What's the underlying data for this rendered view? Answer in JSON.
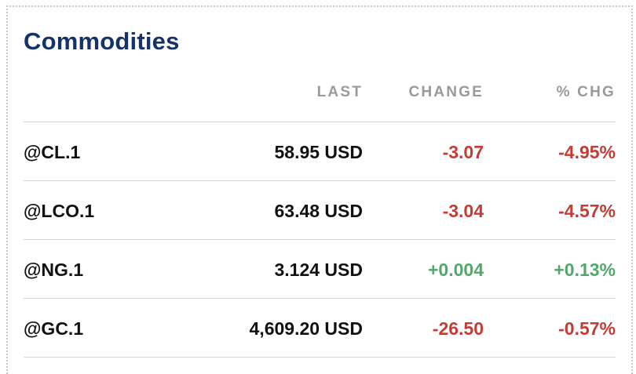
{
  "widget": {
    "title": "Commodities",
    "headers": {
      "last": "LAST",
      "change": "CHANGE",
      "pct_change": "% CHG"
    },
    "rows": [
      {
        "symbol": "@CL.1",
        "last": "58.95 USD",
        "change": "-3.07",
        "pct_change": "-4.95%",
        "direction": "down"
      },
      {
        "symbol": "@LCO.1",
        "last": "63.48 USD",
        "change": "-3.04",
        "pct_change": "-4.57%",
        "direction": "down"
      },
      {
        "symbol": "@NG.1",
        "last": "3.124 USD",
        "change": "+0.004",
        "pct_change": "+0.13%",
        "direction": "up"
      },
      {
        "symbol": "@GC.1",
        "last": "4,609.20 USD",
        "change": "-26.50",
        "pct_change": "-0.57%",
        "direction": "down"
      }
    ]
  },
  "colors": {
    "title": "#16326b",
    "negative": "#c43c35",
    "positive": "#52a86b",
    "header": "#9a9a9a"
  }
}
